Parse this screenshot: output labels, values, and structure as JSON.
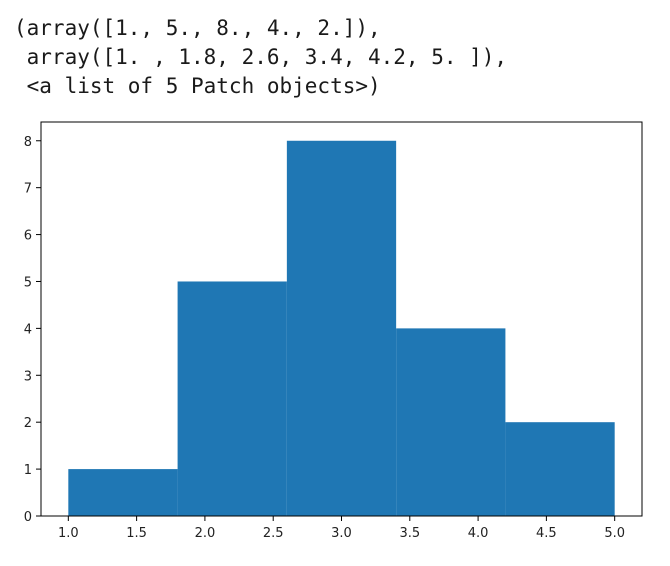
{
  "output": {
    "lines": [
      "(array([1., 5., 8., 4., 2.]),",
      " array([1. , 1.8, 2.6, 3.4, 4.2, 5. ]),",
      " <a list of 5 Patch objects>)"
    ]
  },
  "chart_data": {
    "type": "bar",
    "title": "",
    "xlabel": "",
    "ylabel": "",
    "bin_edges": [
      1.0,
      1.8,
      2.6,
      3.4,
      4.2,
      5.0
    ],
    "values": [
      1,
      5,
      8,
      4,
      2
    ],
    "xlim": [
      0.8,
      5.2
    ],
    "ylim": [
      0,
      8.4
    ],
    "xticks": [
      1.0,
      1.5,
      2.0,
      2.5,
      3.0,
      3.5,
      4.0,
      4.5,
      5.0
    ],
    "xtick_labels": [
      "1.0",
      "1.5",
      "2.0",
      "2.5",
      "3.0",
      "3.5",
      "4.0",
      "4.5",
      "5.0"
    ],
    "yticks": [
      0,
      1,
      2,
      3,
      4,
      5,
      6,
      7,
      8
    ],
    "ytick_labels": [
      "0",
      "1",
      "2",
      "3",
      "4",
      "5",
      "6",
      "7",
      "8"
    ],
    "grid": false,
    "bar_color": "#1f77b4"
  }
}
